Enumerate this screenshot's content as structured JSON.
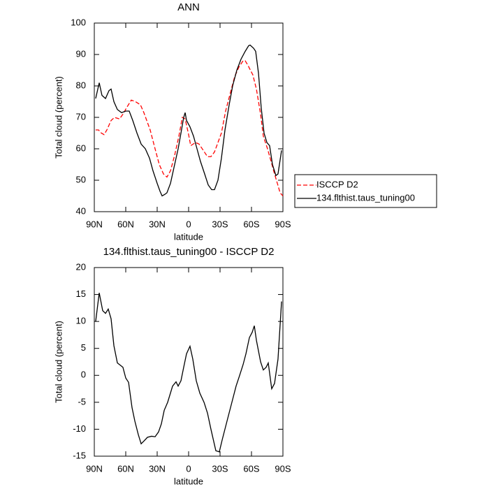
{
  "chart_data": [
    {
      "type": "line",
      "title": "ANN",
      "xlabel": "latitude",
      "ylabel": "Total cloud (percent)",
      "xlim": [
        90,
        -90
      ],
      "xticks": [
        {
          "value": 90,
          "label": "90N"
        },
        {
          "value": 60,
          "label": "60N"
        },
        {
          "value": 30,
          "label": "30N"
        },
        0,
        {
          "value": -30,
          "label": "30S"
        },
        {
          "value": -60,
          "label": "60S"
        },
        {
          "value": -90,
          "label": "90S"
        }
      ],
      "ylim": [
        40,
        100
      ],
      "yticks": [
        40,
        50,
        60,
        70,
        80,
        90,
        100
      ],
      "legend": "right",
      "series": [
        {
          "name": "ISCCP D2",
          "color": "#ff0000",
          "dashed": true,
          "x": [
            88.7,
            86,
            83.3,
            80.7,
            78,
            74,
            70.7,
            66,
            62.7,
            59.3,
            54.7,
            50.7,
            46,
            42.7,
            36.7,
            32,
            28,
            24,
            20.7,
            17.3,
            13.3,
            9.3,
            6,
            3.3,
            0,
            -2,
            -6.7,
            -10,
            -14,
            -18,
            -21.3,
            -24.7,
            -31.3,
            -35.3,
            -40,
            -44,
            -48,
            -52,
            -54,
            -56.7,
            -61.3,
            -64.7,
            -68.7,
            -71.3,
            -75.3,
            -78.7,
            -82,
            -84.7,
            -87.3,
            -90
          ],
          "values": [
            66,
            66,
            65,
            64.5,
            66,
            69,
            70,
            69.5,
            71,
            73,
            75.5,
            75,
            74,
            71.5,
            66,
            60,
            55,
            52,
            51,
            53,
            58,
            64,
            70,
            69.5,
            64.5,
            61,
            62,
            61.5,
            59.5,
            57.5,
            57.5,
            59,
            65,
            72,
            78,
            83,
            86,
            88,
            88,
            86.5,
            83.5,
            79,
            71,
            64,
            60,
            56,
            52,
            49,
            46,
            45
          ]
        },
        {
          "name": "134.flthist.taus_tuning00",
          "color": "#000000",
          "dashed": false,
          "x": [
            88.7,
            85.3,
            82.7,
            79.3,
            76,
            74,
            71.3,
            68,
            64,
            60,
            56.7,
            53.3,
            49.3,
            45.3,
            41.3,
            37.3,
            34,
            30,
            27.3,
            25.3,
            22.7,
            20.7,
            17.3,
            14,
            10,
            7.3,
            4.7,
            3.3,
            2,
            -1.3,
            -4.7,
            -8,
            -11.3,
            -15.3,
            -18.7,
            -22,
            -24.7,
            -28,
            -31.3,
            -34.7,
            -38.7,
            -42,
            -46,
            -50,
            -54,
            -57.3,
            -58.7,
            -62,
            -64,
            -66.7,
            -69.3,
            -72,
            -74.7,
            -77.3,
            -80,
            -83.3,
            -85.3,
            -88.7
          ],
          "values": [
            76,
            81,
            77,
            76,
            78.5,
            79,
            75,
            72.5,
            71.5,
            72,
            72,
            69,
            65,
            61.5,
            60,
            57,
            53,
            49,
            46.5,
            45,
            45.5,
            46,
            49,
            54,
            60,
            65,
            70,
            71.5,
            69,
            67,
            64,
            60,
            56,
            52,
            48.5,
            47,
            47,
            50,
            57,
            66,
            74,
            80,
            85,
            88.5,
            91,
            92.8,
            93,
            92,
            91,
            84,
            73,
            65,
            62,
            61,
            55,
            51.5,
            52,
            59.5
          ]
        }
      ]
    },
    {
      "type": "line",
      "title": "134.flthist.taus_tuning00 - ISCCP D2",
      "xlabel": "latitude",
      "ylabel": "Total cloud (percent)",
      "xlim": [
        90,
        -90
      ],
      "xticks": [
        {
          "value": 90,
          "label": "90N"
        },
        {
          "value": 60,
          "label": "60N"
        },
        {
          "value": 30,
          "label": "30N"
        },
        0,
        {
          "value": -30,
          "label": "30S"
        },
        {
          "value": -60,
          "label": "60S"
        },
        {
          "value": -90,
          "label": "90S"
        }
      ],
      "ylim": [
        -15,
        20
      ],
      "yticks": [
        -15,
        -10,
        -5,
        0,
        5,
        10,
        15,
        20
      ],
      "series": [
        {
          "color": "#000000",
          "dashed": false,
          "x": [
            88.7,
            85.3,
            82,
            79.3,
            76.7,
            74,
            71.3,
            68,
            64.7,
            62.7,
            60,
            57.3,
            54,
            51.3,
            48,
            45.3,
            42.7,
            39.3,
            35.3,
            32,
            28.7,
            26,
            23.3,
            20,
            15.3,
            12,
            10,
            7.3,
            4.7,
            2,
            -1.3,
            -4,
            -7.3,
            -10.7,
            -14.7,
            -18,
            -21.3,
            -26,
            -29.3,
            -32,
            -37.3,
            -41.3,
            -45.3,
            -48.7,
            -52,
            -54.7,
            -58,
            -60.7,
            -62.7,
            -64.7,
            -68.7,
            -71.3,
            -74,
            -76,
            -79.3,
            -82,
            -85.3,
            -88.7
          ],
          "values": [
            10,
            15.3,
            12,
            11.5,
            12.3,
            10.5,
            5.5,
            2.3,
            1.8,
            1.5,
            -0.5,
            -1.3,
            -6,
            -8.5,
            -11,
            -12.7,
            -12.2,
            -11.5,
            -11.3,
            -11.4,
            -10.5,
            -9,
            -6.5,
            -5,
            -2,
            -1.2,
            -2,
            -1,
            1.5,
            4,
            5.4,
            3,
            -1,
            -3.3,
            -5,
            -7,
            -10,
            -14,
            -14.2,
            -12,
            -8,
            -5,
            -2,
            0,
            2,
            4,
            7,
            8,
            9.2,
            6.5,
            2.5,
            1,
            1.5,
            2.3,
            -2.5,
            -1.5,
            3,
            13.7
          ]
        }
      ]
    }
  ]
}
